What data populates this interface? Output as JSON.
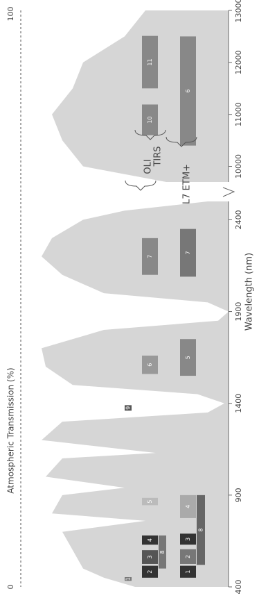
{
  "chart_data": {
    "type": "band-diagram",
    "x_label": "Wavelength (nm)",
    "y_label": "Atmospheric Transmission (%)",
    "xlim_segments": [
      [
        400,
        2500
      ],
      [
        9700,
        13000
      ]
    ],
    "xticks": [
      400,
      900,
      1400,
      1900,
      2400,
      10000,
      11000,
      12000,
      13000
    ],
    "ylim": [
      0,
      100
    ],
    "yticks": [
      0,
      100
    ],
    "transmission": {
      "color": "#d6d6d6",
      "x": [
        400,
        450,
        500,
        600,
        700,
        760,
        800,
        900,
        940,
        1000,
        1100,
        1130,
        1200,
        1300,
        1350,
        1400,
        1450,
        1500,
        1600,
        1700,
        1800,
        1850,
        1900,
        1950,
        2000,
        2100,
        2200,
        2300,
        2400,
        2450,
        2500,
        9700,
        10000,
        10500,
        11000,
        11500,
        12000,
        12500,
        13000
      ],
      "values": [
        45,
        60,
        70,
        75,
        80,
        40,
        85,
        80,
        50,
        88,
        80,
        35,
        90,
        80,
        10,
        2,
        15,
        75,
        88,
        90,
        60,
        5,
        0,
        10,
        60,
        80,
        90,
        85,
        70,
        50,
        10,
        30,
        70,
        80,
        85,
        75,
        70,
        50,
        40
      ]
    },
    "series": [
      {
        "name": "OLI",
        "bands": [
          {
            "label": "1",
            "range": [
              433,
              453
            ],
            "color": "#777777"
          },
          {
            "label": "2",
            "range": [
              450,
              515
            ],
            "color": "#333333"
          },
          {
            "label": "3",
            "range": [
              525,
              600
            ],
            "color": "#555555"
          },
          {
            "label": "4",
            "range": [
              630,
              680
            ],
            "color": "#333333"
          },
          {
            "label": "5",
            "range": [
              845,
              885
            ],
            "color": "#bbbbbb"
          },
          {
            "label": "6",
            "range": [
              1560,
              1660
            ],
            "color": "#999999"
          },
          {
            "label": "7",
            "range": [
              2100,
              2300
            ],
            "color": "#888888"
          },
          {
            "label": "8",
            "range": [
              500,
              680
            ],
            "color": "#777777"
          },
          {
            "label": "9",
            "range": [
              1360,
              1390
            ],
            "color": "#555555"
          }
        ]
      },
      {
        "name": "TIRS",
        "bands": [
          {
            "label": "10",
            "range": [
              10600,
              11190
            ],
            "color": "#888888"
          },
          {
            "label": "11",
            "range": [
              11500,
              12510
            ],
            "color": "#888888"
          }
        ]
      },
      {
        "name": "L7 ETM+",
        "bands": [
          {
            "label": "1",
            "range": [
              450,
              515
            ],
            "color": "#333333"
          },
          {
            "label": "2",
            "range": [
              525,
              605
            ],
            "color": "#777777"
          },
          {
            "label": "3",
            "range": [
              630,
              690
            ],
            "color": "#333333"
          },
          {
            "label": "4",
            "range": [
              775,
              900
            ],
            "color": "#aaaaaa"
          },
          {
            "label": "5",
            "range": [
              1550,
              1750
            ],
            "color": "#888888"
          },
          {
            "label": "6",
            "range": [
              10400,
              12500
            ],
            "color": "#888888"
          },
          {
            "label": "7",
            "range": [
              2090,
              2350
            ],
            "color": "#777777"
          },
          {
            "label": "8",
            "range": [
              520,
              900
            ],
            "color": "#666666"
          }
        ]
      }
    ]
  }
}
